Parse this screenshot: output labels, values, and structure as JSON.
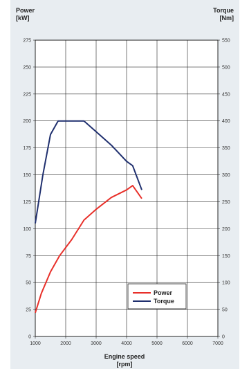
{
  "titles": {
    "left_line1": "Power",
    "left_line2": "[kW]",
    "right_line1": "Torque",
    "right_line2": "[Nm]",
    "x_line1": "Engine speed",
    "x_line2": "[rpm]"
  },
  "chart_data": {
    "type": "line",
    "xlim": [
      1000,
      7000
    ],
    "ylim_left": [
      0,
      275
    ],
    "ylim_right": [
      0,
      550
    ],
    "x_ticks": [
      1000,
      2000,
      3000,
      4000,
      5000,
      6000,
      7000
    ],
    "y_left_ticks": [
      0,
      25,
      50,
      75,
      100,
      125,
      150,
      175,
      200,
      225,
      250,
      275
    ],
    "y_right_ticks": [
      0,
      50,
      100,
      150,
      200,
      250,
      300,
      350,
      400,
      450,
      500,
      550
    ],
    "grid": true,
    "legend_position": "bottom-right",
    "series": [
      {
        "name": "Power",
        "axis": "left",
        "color": "#e8302a",
        "points": [
          [
            1000,
            22
          ],
          [
            1200,
            40
          ],
          [
            1500,
            60
          ],
          [
            1800,
            75
          ],
          [
            2200,
            90
          ],
          [
            2600,
            108
          ],
          [
            3000,
            118
          ],
          [
            3500,
            129
          ],
          [
            4000,
            136
          ],
          [
            4200,
            140
          ],
          [
            4350,
            134
          ],
          [
            4500,
            128
          ]
        ]
      },
      {
        "name": "Torque",
        "axis": "right",
        "color": "#1f2f6e",
        "points": [
          [
            1000,
            210
          ],
          [
            1250,
            300
          ],
          [
            1500,
            375
          ],
          [
            1750,
            400
          ],
          [
            2000,
            400
          ],
          [
            2300,
            400
          ],
          [
            2600,
            400
          ],
          [
            3000,
            380
          ],
          [
            3500,
            355
          ],
          [
            4000,
            325
          ],
          [
            4200,
            317
          ],
          [
            4500,
            272
          ]
        ]
      }
    ]
  }
}
